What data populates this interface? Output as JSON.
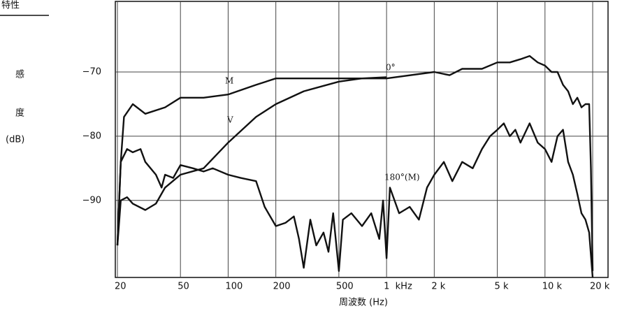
{
  "chart_data": {
    "type": "line",
    "title": "特性",
    "xlabel": "周波数 (Hz)",
    "ylabel": [
      "感",
      "度",
      "(dB)"
    ],
    "log_x": true,
    "grid": true,
    "xlim": [
      19.4,
      25000
    ],
    "ylim": [
      -102,
      -59
    ],
    "xticks": [
      20,
      50,
      100,
      200,
      500,
      {
        "value": 1000,
        "label": "1  kHz"
      },
      {
        "value": 2000,
        "label": "2 k"
      },
      {
        "value": 5000,
        "label": "5 k"
      },
      {
        "value": 10000,
        "label": "10 k"
      },
      {
        "value": 20000,
        "label": "20 k"
      }
    ],
    "yticks": [
      {
        "value": -70,
        "label": "−70"
      },
      {
        "value": -80,
        "label": "−80"
      },
      {
        "value": -90,
        "label": "−90"
      }
    ],
    "annotations": [
      "0°"
    ],
    "series": [
      {
        "name": "M",
        "color": "#111111",
        "x": [
          20,
          21,
          22,
          25,
          30,
          40,
          50,
          70,
          100,
          150,
          200,
          500,
          1000,
          2000,
          2500,
          3000,
          4000,
          5000,
          6000,
          7000,
          8000,
          9000,
          10000,
          11000,
          12000,
          13000,
          14000,
          15000,
          16000,
          17000,
          18000,
          19000,
          19500,
          20000
        ],
        "values": [
          -97,
          -84,
          -77,
          -75,
          -76.5,
          -75.5,
          -74,
          -74,
          -73.5,
          -72,
          -71,
          -71,
          -71,
          -70,
          -70.5,
          -69.5,
          -69.5,
          -68.5,
          -68.5,
          -68,
          -67.5,
          -68.5,
          -69,
          -70,
          -70,
          -72,
          -73,
          -75,
          -74,
          -75.5,
          -75,
          -75,
          -85,
          -101
        ]
      },
      {
        "name": "V",
        "color": "#111111",
        "x": [
          20,
          21,
          23,
          25,
          30,
          35,
          40,
          50,
          70,
          100,
          150,
          200,
          300,
          500,
          700,
          1000
        ],
        "values": [
          -97,
          -90,
          -89.5,
          -90.5,
          -91.5,
          -90.5,
          -88,
          -86,
          -85,
          -81,
          -77,
          -75,
          -73,
          -71.5,
          -71,
          -70.8
        ]
      },
      {
        "name": "180°(M)",
        "color": "#111111",
        "x": [
          20,
          21,
          23,
          25,
          28,
          30,
          35,
          38,
          40,
          45,
          50,
          60,
          70,
          80,
          100,
          120,
          150,
          170,
          200,
          230,
          260,
          280,
          300,
          330,
          360,
          400,
          430,
          460,
          500,
          530,
          600,
          700,
          800,
          900,
          950,
          1000,
          1050,
          1200,
          1400,
          1600,
          1800,
          2000,
          2300,
          2600,
          3000,
          3500,
          4000,
          4500,
          5000,
          5500,
          6000,
          6500,
          7000,
          8000,
          9000,
          10000,
          11000,
          12000,
          13000,
          14000,
          15000,
          16000,
          17000,
          18000,
          19000,
          20000
        ],
        "values": [
          -97,
          -84,
          -82,
          -82.5,
          -82,
          -84,
          -86,
          -88,
          -86,
          -86.5,
          -84.5,
          -85,
          -85.5,
          -85,
          -86,
          -86.5,
          -87,
          -91,
          -94,
          -93.5,
          -92.5,
          -96,
          -100.5,
          -93,
          -97,
          -95,
          -98,
          -92,
          -101,
          -93,
          -92,
          -94,
          -92,
          -96,
          -90,
          -99,
          -88,
          -92,
          -91,
          -93,
          -88,
          -86,
          -84,
          -87,
          -84,
          -85,
          -82,
          -80,
          -79,
          -78,
          -80,
          -79,
          -81,
          -78,
          -81,
          -82,
          -84,
          -80,
          -79,
          -84,
          -86,
          -89,
          -92,
          -93,
          -95,
          -102
        ]
      }
    ]
  }
}
